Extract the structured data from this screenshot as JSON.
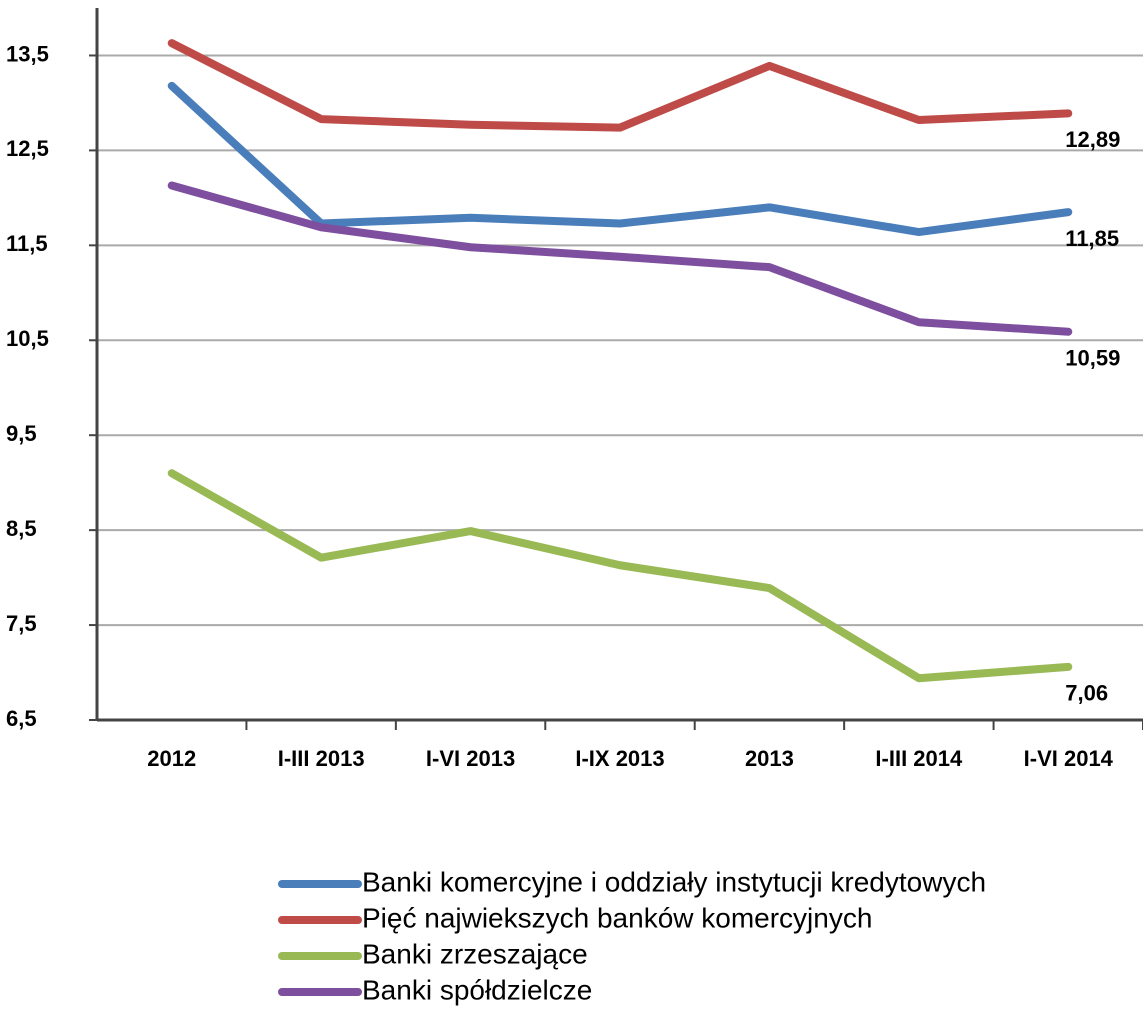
{
  "chart_data": {
    "type": "line",
    "categories": [
      "2012",
      "I-III 2013",
      "I-VI 2013",
      "I-IX 2013",
      "2013",
      "I-III 2014",
      "I-VI 2014"
    ],
    "series": [
      {
        "name": "Banki komercyjne i oddziały instytucji kredytowych",
        "color": "#4a7ebb",
        "values": [
          13.18,
          11.73,
          11.79,
          11.73,
          11.9,
          11.64,
          11.85
        ],
        "value_labels": [
          null,
          null,
          null,
          null,
          null,
          null,
          "11,85"
        ]
      },
      {
        "name": "Pięć najwiekszych banków komercyjnych",
        "color": "#be4b48",
        "values": [
          13.63,
          12.83,
          12.77,
          12.74,
          13.39,
          12.82,
          12.89
        ],
        "value_labels": [
          null,
          null,
          null,
          null,
          null,
          null,
          "12,89"
        ]
      },
      {
        "name": "Banki zrzeszające",
        "color": "#98b954",
        "values": [
          9.1,
          8.21,
          8.49,
          8.13,
          7.89,
          6.94,
          7.06
        ],
        "value_labels": [
          null,
          null,
          null,
          null,
          null,
          null,
          "7,06"
        ]
      },
      {
        "name": "Banki spółdzielcze",
        "color": "#7d4f9e",
        "values": [
          12.13,
          11.69,
          11.48,
          11.38,
          11.27,
          10.69,
          10.59
        ],
        "value_labels": [
          null,
          null,
          null,
          null,
          null,
          null,
          "10,59"
        ]
      }
    ],
    "ylim": [
      6.5,
      14
    ],
    "yticks": [
      {
        "value": 6.5,
        "label": "6,5"
      },
      {
        "value": 7.5,
        "label": "7,5"
      },
      {
        "value": 8.5,
        "label": "8,5"
      },
      {
        "value": 9.5,
        "label": "9,5"
      },
      {
        "value": 10.5,
        "label": "10,5"
      },
      {
        "value": 11.5,
        "label": "11,5"
      },
      {
        "value": 12.5,
        "label": "12,5"
      },
      {
        "value": 13.5,
        "label": "13,5"
      }
    ],
    "grid": true
  }
}
